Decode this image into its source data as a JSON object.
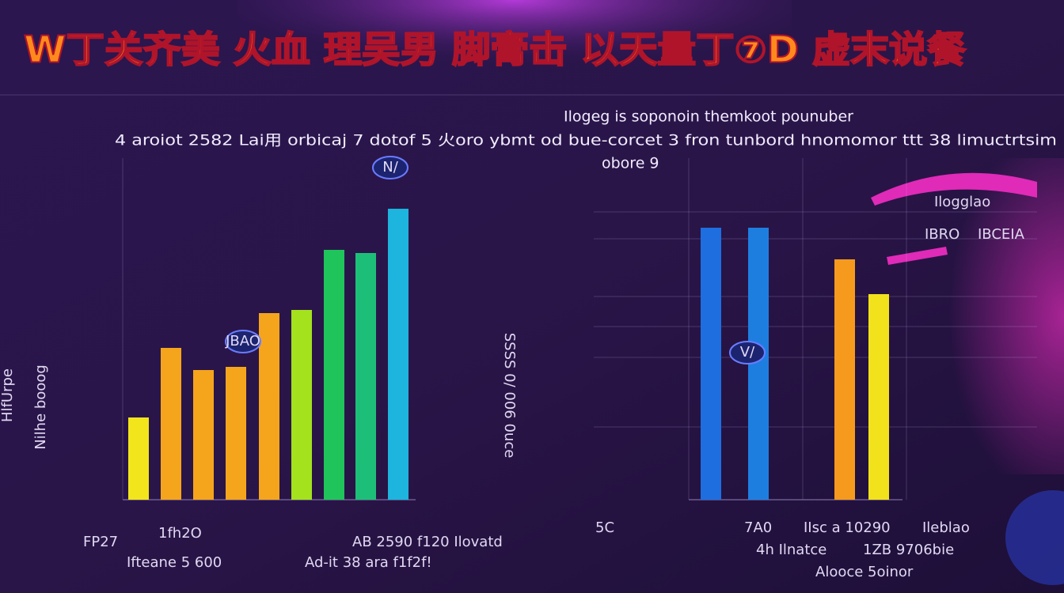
{
  "title": "W丁关齐美 火血 理吴男 脚膏击 以天量丁⑦D 虚末说餐",
  "subtitle": [
    "Ilogeg is soponoin themkoot pounuber",
    "4 aroiot 2582 Lai用 orbicaj 7 dotof 5 火oro ybmt od bue-corcet 3 fron tunbord hnomomor ttt 38 limuctrtsim",
    "obore 9"
  ],
  "chart_data": [
    {
      "type": "bar",
      "y_label": "Nilhe booog",
      "side_label": "HlfUrpe",
      "values": [
        26,
        48,
        41,
        42,
        59,
        60,
        79,
        78,
        92
      ],
      "colors": [
        "#f2e51b",
        "#f5a51c",
        "#f5a51c",
        "#f5a51c",
        "#f5a51c",
        "#a3e21d",
        "#1fc45a",
        "#1dbf78",
        "#1db4de"
      ],
      "ylim": [
        0,
        100
      ],
      "annotations": [
        "N/",
        "JBAO",
        "FP27",
        "1fh2O",
        "AB 2590 f120 Ilovatd",
        "Ifteane 5 600",
        "Ad-it 38 ara f1f2f!"
      ]
    },
    {
      "type": "bar",
      "y_label": "SSSS 0/ 006 0uce",
      "values": [
        86,
        86,
        76,
        65
      ],
      "colors": [
        "#1e6ee0",
        "#1e7ee0",
        "#f59a1c",
        "#f2e21b"
      ],
      "ylim": [
        0,
        100
      ],
      "annotations": [
        "V/",
        "Ilogglao",
        "IBRO",
        "IBCEIA",
        "5C",
        "7A0",
        "IIsc a 10290",
        "Ileblao",
        "4h Ilnatce",
        "1ZB 9706bie",
        "Alooce 5oinor"
      ]
    }
  ]
}
